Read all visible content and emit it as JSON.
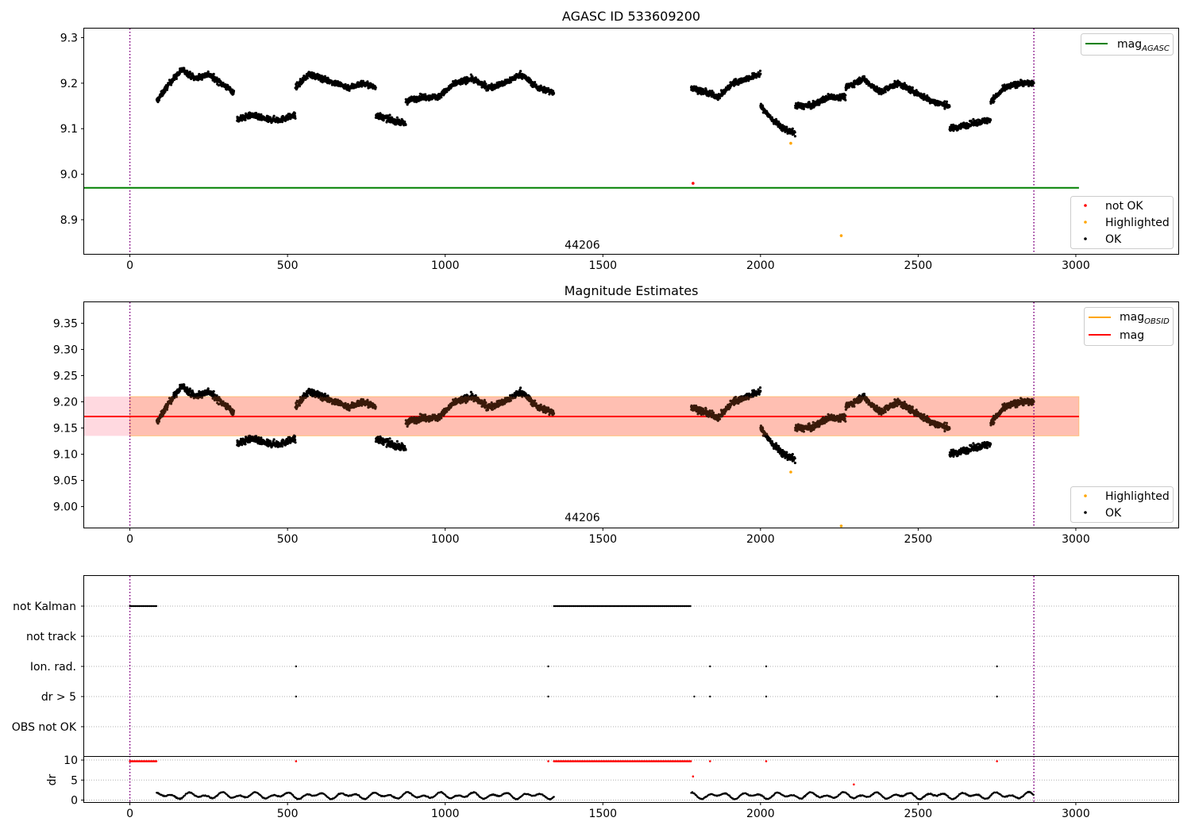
{
  "colors": {
    "ok": "#000000",
    "highlighted": "#ffa500",
    "not_ok": "#ff0000",
    "mag_agasc_line": "#008000",
    "mag_obsid_line": "#ffa500",
    "mag_line": "#ff0000",
    "mag_band": "#ffc0cb",
    "obsid_band": "#ffa07a",
    "time_marker": "#800080",
    "flag_points": "#000000",
    "dr_flagged": "#ff0000"
  },
  "chart_data": [
    {
      "type": "scatter",
      "title": "AGASC ID 533609200",
      "xlim": [
        -145,
        3325
      ],
      "ylim": [
        8.825,
        9.32
      ],
      "xticks": [
        0,
        500,
        1000,
        1500,
        2000,
        2500,
        3000
      ],
      "yticks": [
        8.9,
        9.0,
        9.1,
        9.2,
        9.3
      ],
      "vlines": [
        0,
        2867
      ],
      "obsid_label": {
        "text": "44206",
        "x": 1435,
        "y": 8.84
      },
      "lines": [
        {
          "name": "mag$_{AGASC}$",
          "display": "mag",
          "sub": "AGASC",
          "y": 8.97,
          "x_range": [
            -145,
            3010
          ],
          "color": "#008000"
        }
      ],
      "scatter_legend": [
        {
          "name": "not OK",
          "color": "#ff0000"
        },
        {
          "name": "Highlighted",
          "color": "#ffa500"
        },
        {
          "name": "OK",
          "color": "#000000"
        }
      ],
      "special_points": [
        {
          "x": 1786,
          "y": 8.98,
          "class": "not OK"
        },
        {
          "x": 2096,
          "y": 9.068,
          "class": "Highlighted"
        },
        {
          "x": 2256,
          "y": 8.865,
          "class": "Highlighted"
        }
      ],
      "segments": [
        {
          "x0": 85,
          "x1": 330,
          "y_knots": [
            9.16,
            9.2,
            9.23,
            9.21,
            9.22,
            9.2,
            9.18
          ]
        },
        {
          "x0": 340,
          "x1": 525,
          "y_knots": [
            9.12,
            9.13,
            9.12,
            9.12,
            9.13
          ]
        },
        {
          "x0": 525,
          "x1": 780,
          "y_knots": [
            9.19,
            9.22,
            9.21,
            9.2,
            9.19,
            9.2,
            9.19
          ]
        },
        {
          "x0": 780,
          "x1": 875,
          "y_knots": [
            9.13,
            9.12,
            9.11
          ]
        },
        {
          "x0": 875,
          "x1": 1345,
          "y_knots": [
            9.16,
            9.17,
            9.17,
            9.2,
            9.21,
            9.19,
            9.2,
            9.22,
            9.19,
            9.18
          ]
        },
        {
          "x0": 1780,
          "x1": 2000,
          "y_knots": [
            9.19,
            9.18,
            9.17,
            9.2,
            9.21,
            9.22
          ]
        },
        {
          "x0": 2000,
          "x1": 2110,
          "y_knots": [
            9.15,
            9.12,
            9.1,
            9.09
          ]
        },
        {
          "x0": 2110,
          "x1": 2270,
          "y_knots": [
            9.15,
            9.15,
            9.17,
            9.17
          ]
        },
        {
          "x0": 2270,
          "x1": 2600,
          "y_knots": [
            9.19,
            9.21,
            9.18,
            9.2,
            9.18,
            9.16,
            9.15
          ]
        },
        {
          "x0": 2600,
          "x1": 2730,
          "y_knots": [
            9.1,
            9.11,
            9.12
          ]
        },
        {
          "x0": 2730,
          "x1": 2867,
          "y_knots": [
            9.16,
            9.19,
            9.2,
            9.2
          ]
        }
      ]
    },
    {
      "type": "scatter",
      "title": "Magnitude Estimates",
      "xlim": [
        -145,
        3325
      ],
      "ylim": [
        8.96,
        9.39
      ],
      "xticks": [
        0,
        500,
        1000,
        1500,
        2000,
        2500,
        3000
      ],
      "yticks": [
        9.0,
        9.05,
        9.1,
        9.15,
        9.2,
        9.25,
        9.3,
        9.35
      ],
      "vlines": [
        0,
        2867
      ],
      "obsid_label": {
        "text": "44206",
        "x": 1435,
        "y": 8.975
      },
      "mag": {
        "value": 9.172,
        "band": [
          9.135,
          9.21
        ],
        "x_range": [
          -145,
          3010
        ]
      },
      "mag_obsid": {
        "value": 9.172,
        "band": [
          9.135,
          9.21
        ],
        "x_range": [
          0,
          3010
        ]
      },
      "lines": [
        {
          "name": "mag$_{OBSID}$",
          "display": "mag",
          "sub": "OBSID",
          "color": "#ffa500"
        },
        {
          "name": "mag",
          "display": "mag",
          "sub": "",
          "color": "#ff0000"
        }
      ],
      "scatter_legend": [
        {
          "name": "Highlighted",
          "color": "#ffa500"
        },
        {
          "name": "OK",
          "color": "#000000"
        }
      ],
      "special_points": [
        {
          "x": 2096,
          "y": 9.066,
          "class": "Highlighted"
        },
        {
          "x": 2256,
          "y": 8.963,
          "class": "Highlighted"
        }
      ]
    },
    {
      "type": "scatter",
      "title": "",
      "xlim": [
        -145,
        3325
      ],
      "xticks": [
        0,
        500,
        1000,
        1500,
        2000,
        2500,
        3000
      ],
      "vlines": [
        0,
        2867
      ],
      "flag_rows": [
        {
          "label": "not Kalman",
          "ranges": [
            [
              0,
              85
            ],
            [
              1345,
              1780
            ]
          ],
          "points": []
        },
        {
          "label": "not track",
          "ranges": [],
          "points": []
        },
        {
          "label": "Ion. rad.",
          "ranges": [],
          "points": [
            527,
            1327,
            1840,
            2018,
            2750
          ]
        },
        {
          "label": "dr > 5",
          "ranges": [],
          "points": [
            527,
            1327,
            1790,
            1840,
            2018,
            2750
          ]
        },
        {
          "label": "OBS not OK",
          "ranges": [],
          "points": []
        }
      ],
      "dr_panel": {
        "ylabel": "dr",
        "ylim": [
          -0.5,
          11
        ],
        "yticks": [
          0,
          5,
          10
        ],
        "flagged_ranges": [
          [
            0,
            85
          ],
          [
            1345,
            1780
          ]
        ],
        "flagged_points": [
          527,
          1327,
          1840,
          2018,
          2750
        ],
        "flagged_value": 9.7,
        "outliers": [
          {
            "x": 1786,
            "y": 5.9
          },
          {
            "x": 2296,
            "y": 3.9
          }
        ],
        "ok_segments": [
          [
            85,
            1345
          ],
          [
            1780,
            2867
          ]
        ]
      }
    }
  ]
}
